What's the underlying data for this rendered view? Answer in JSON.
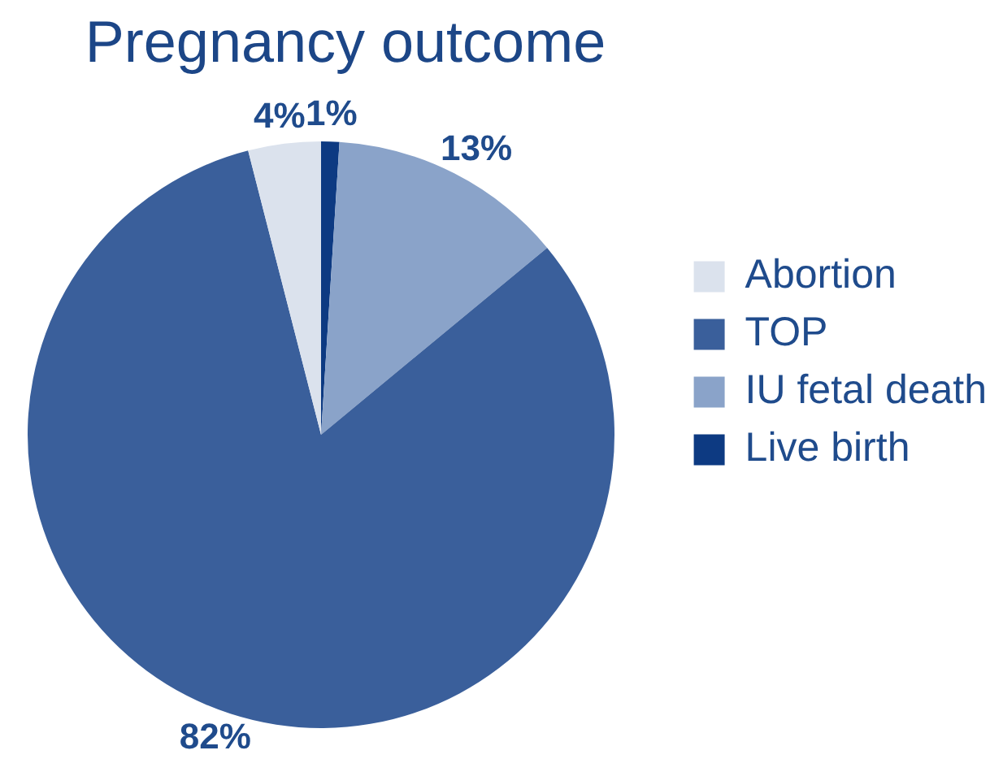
{
  "chart_data": {
    "type": "pie",
    "title": "Pregnancy outcome",
    "categories": [
      "Abortion",
      "TOP",
      "IU fetal death",
      "Live birth"
    ],
    "values": [
      4,
      82,
      13,
      1
    ],
    "colors": [
      "#dbe2ed",
      "#3a5f9b",
      "#8aa3c9",
      "#0d3a82"
    ],
    "value_labels": [
      "4%",
      "82%",
      "13%",
      "1%"
    ],
    "legend": "right"
  }
}
